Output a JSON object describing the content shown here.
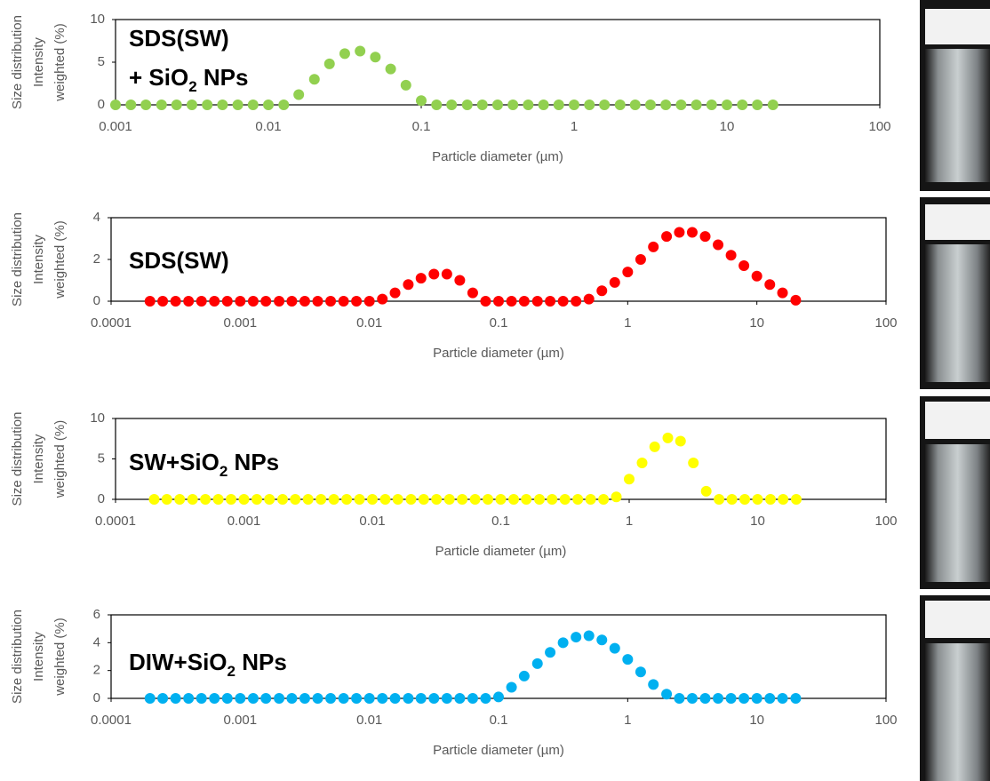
{
  "chart_data": [
    {
      "type": "scatter",
      "xscale": "log",
      "color": "#92d050",
      "annotation": [
        [
          {
            "text": "SDS(SW)"
          }
        ],
        [
          {
            "text": "+ SiO"
          },
          {
            "text": "2",
            "sub": true
          },
          {
            "text": " NPs"
          }
        ]
      ],
      "xlabel": "Particle diameter (µm)",
      "ylabel": [
        "Size distribution",
        "Intensity",
        "weighted  (%)"
      ],
      "xlim": [
        0.001,
        100
      ],
      "xticks": [
        0.001,
        0.01,
        0.1,
        1,
        10,
        100
      ],
      "ylim": [
        0,
        10
      ],
      "yticks": [
        0,
        5,
        10
      ],
      "x": [
        0.001,
        0.00126,
        0.00158,
        0.002,
        0.00251,
        0.00316,
        0.00398,
        0.00501,
        0.00631,
        0.00794,
        0.01,
        0.0126,
        0.0158,
        0.02,
        0.0251,
        0.0316,
        0.0398,
        0.0501,
        0.0631,
        0.0794,
        0.1,
        0.126,
        0.158,
        0.2,
        0.251,
        0.316,
        0.398,
        0.501,
        0.631,
        0.794,
        1,
        1.26,
        1.58,
        2,
        2.51,
        3.16,
        3.98,
        5.01,
        6.31,
        7.94,
        10,
        12.6,
        15.8,
        20
      ],
      "values": [
        0,
        0,
        0,
        0,
        0,
        0,
        0,
        0,
        0,
        0,
        0,
        0,
        1.2,
        3.0,
        4.8,
        6.0,
        6.3,
        5.6,
        4.2,
        2.3,
        0.5,
        0,
        0,
        0,
        0,
        0,
        0,
        0,
        0,
        0,
        0,
        0,
        0,
        0,
        0,
        0,
        0,
        0,
        0,
        0,
        0,
        0,
        0,
        0
      ]
    },
    {
      "type": "scatter",
      "xscale": "log",
      "color": "#ff0000",
      "annotation": [
        [
          {
            "text": "SDS(SW)"
          }
        ]
      ],
      "xlabel": "Particle diameter (µm)",
      "ylabel": [
        "Size distribution",
        "Intensity",
        "weighted  (%)"
      ],
      "xlim": [
        0.0001,
        100
      ],
      "xticks": [
        0.0001,
        0.001,
        0.01,
        0.1,
        1,
        10,
        100
      ],
      "ylim": [
        0,
        4
      ],
      "yticks": [
        0,
        2,
        4
      ],
      "x": [
        0.0002,
        0.000251,
        0.000316,
        0.000398,
        0.000501,
        0.000631,
        0.000794,
        0.001,
        0.00126,
        0.00158,
        0.002,
        0.00251,
        0.00316,
        0.00398,
        0.00501,
        0.00631,
        0.00794,
        0.01,
        0.0126,
        0.0158,
        0.02,
        0.0251,
        0.0316,
        0.0398,
        0.0501,
        0.0631,
        0.0794,
        0.1,
        0.126,
        0.158,
        0.2,
        0.251,
        0.316,
        0.398,
        0.501,
        0.631,
        0.794,
        1,
        1.26,
        1.58,
        2,
        2.51,
        3.16,
        3.98,
        5.01,
        6.31,
        7.94,
        10,
        12.6,
        15.8,
        20
      ],
      "values": [
        0,
        0,
        0,
        0,
        0,
        0,
        0,
        0,
        0,
        0,
        0,
        0,
        0,
        0,
        0,
        0,
        0,
        0,
        0.1,
        0.4,
        0.8,
        1.1,
        1.3,
        1.3,
        1.0,
        0.4,
        0,
        0,
        0,
        0,
        0,
        0,
        0,
        0,
        0.1,
        0.5,
        0.9,
        1.4,
        2.0,
        2.6,
        3.1,
        3.3,
        3.3,
        3.1,
        2.7,
        2.2,
        1.7,
        1.2,
        0.8,
        0.4,
        0.05
      ]
    },
    {
      "type": "scatter",
      "xscale": "log",
      "color": "#ffff00",
      "annotation": [
        [
          {
            "text": "SW+SiO"
          },
          {
            "text": "2",
            "sub": true
          },
          {
            "text": " NPs"
          }
        ]
      ],
      "xlabel": "Particle diameter (µm)",
      "ylabel": [
        "Size distribution",
        "Intensity",
        "weighted  (%)"
      ],
      "xlim": [
        0.0001,
        100
      ],
      "xticks": [
        0.0001,
        0.001,
        0.01,
        0.1,
        1,
        10,
        100
      ],
      "ylim": [
        0,
        10
      ],
      "yticks": [
        0,
        5,
        10
      ],
      "x": [
        0.0002,
        0.000251,
        0.000316,
        0.000398,
        0.000501,
        0.000631,
        0.000794,
        0.001,
        0.00126,
        0.00158,
        0.002,
        0.00251,
        0.00316,
        0.00398,
        0.00501,
        0.00631,
        0.00794,
        0.01,
        0.0126,
        0.0158,
        0.02,
        0.0251,
        0.0316,
        0.0398,
        0.0501,
        0.0631,
        0.0794,
        0.1,
        0.126,
        0.158,
        0.2,
        0.251,
        0.316,
        0.398,
        0.501,
        0.631,
        0.794,
        1,
        1.26,
        1.58,
        2,
        2.51,
        3.16,
        3.98,
        5.01,
        6.31,
        7.94,
        10,
        12.6,
        15.8,
        20
      ],
      "values": [
        0,
        0,
        0,
        0,
        0,
        0,
        0,
        0,
        0,
        0,
        0,
        0,
        0,
        0,
        0,
        0,
        0,
        0,
        0,
        0,
        0,
        0,
        0,
        0,
        0,
        0,
        0,
        0,
        0,
        0,
        0,
        0,
        0,
        0,
        0,
        0,
        0.3,
        2.5,
        4.5,
        6.5,
        7.6,
        7.2,
        4.5,
        1.0,
        0,
        0,
        0,
        0,
        0,
        0,
        0
      ]
    },
    {
      "type": "scatter",
      "xscale": "log",
      "color": "#00b0f0",
      "annotation": [
        [
          {
            "text": "DIW+SiO"
          },
          {
            "text": "2",
            "sub": true
          },
          {
            "text": " NPs"
          }
        ]
      ],
      "xlabel": "Particle diameter (µm)",
      "ylabel": [
        "Size distribution",
        "Intensity",
        "weighted  (%)"
      ],
      "xlim": [
        0.0001,
        100
      ],
      "xticks": [
        0.0001,
        0.001,
        0.01,
        0.1,
        1,
        10,
        100
      ],
      "ylim": [
        0,
        6
      ],
      "yticks": [
        0,
        2,
        4,
        6
      ],
      "x": [
        0.0002,
        0.000251,
        0.000316,
        0.000398,
        0.000501,
        0.000631,
        0.000794,
        0.001,
        0.00126,
        0.00158,
        0.002,
        0.00251,
        0.00316,
        0.00398,
        0.00501,
        0.00631,
        0.00794,
        0.01,
        0.0126,
        0.0158,
        0.02,
        0.0251,
        0.0316,
        0.0398,
        0.0501,
        0.0631,
        0.0794,
        0.1,
        0.126,
        0.158,
        0.2,
        0.251,
        0.316,
        0.398,
        0.501,
        0.631,
        0.794,
        1,
        1.26,
        1.58,
        2,
        2.51,
        3.16,
        3.98,
        5.01,
        6.31,
        7.94,
        10,
        12.6,
        15.8,
        20
      ],
      "values": [
        0,
        0,
        0,
        0,
        0,
        0,
        0,
        0,
        0,
        0,
        0,
        0,
        0,
        0,
        0,
        0,
        0,
        0,
        0,
        0,
        0,
        0,
        0,
        0,
        0,
        0,
        0,
        0.1,
        0.8,
        1.6,
        2.5,
        3.3,
        4.0,
        4.4,
        4.5,
        4.2,
        3.6,
        2.8,
        1.9,
        1.0,
        0.3,
        0,
        0,
        0,
        0,
        0,
        0,
        0,
        0,
        0,
        0
      ]
    }
  ]
}
